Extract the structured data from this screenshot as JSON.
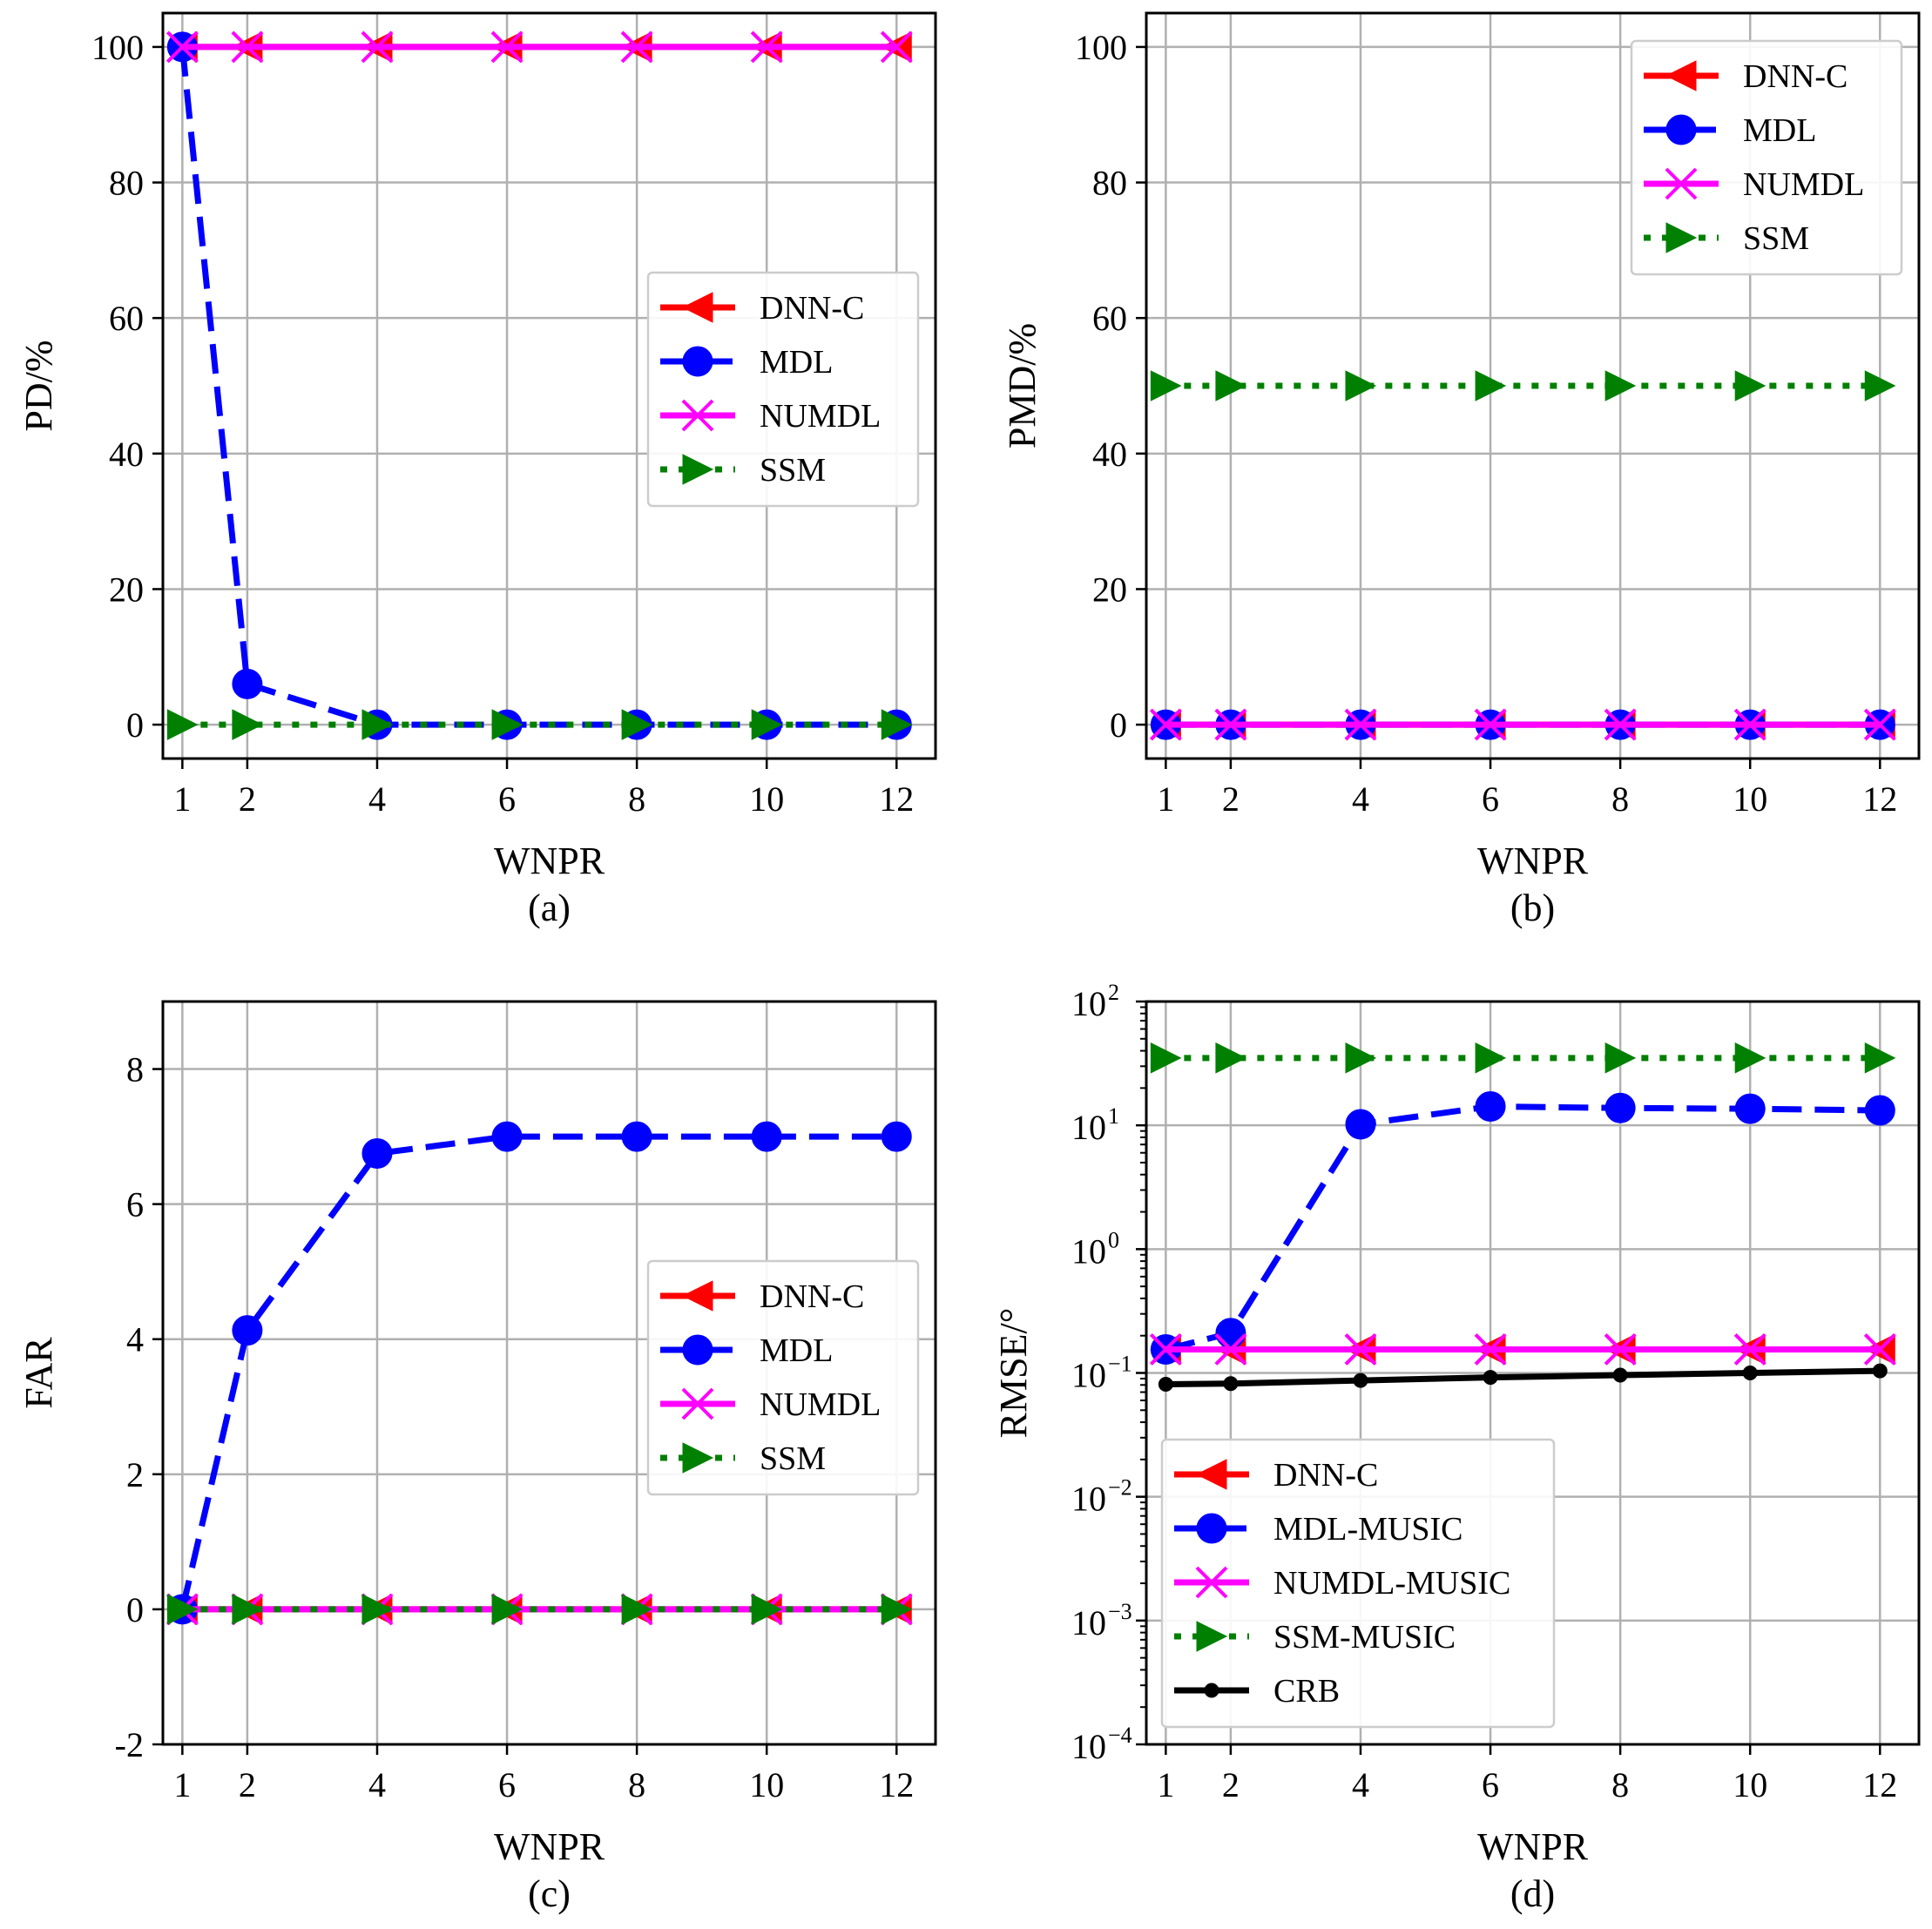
{
  "figure": {
    "colors": {
      "DNN-C": "#ff0000",
      "MDL": "#0000ff",
      "NUMDL": "#ff00ff",
      "SSM": "#008000",
      "CRB": "#000000",
      "grid": "#b0b0b0",
      "legend_border": "#cccccc"
    }
  },
  "chart_data": [
    {
      "id": "a",
      "type": "line",
      "caption": "(a)",
      "xlabel": "WNPR",
      "ylabel": "PD/%",
      "yscale": "linear",
      "xlim": [
        0.7,
        12.6
      ],
      "ylim": [
        -5,
        105
      ],
      "xticks": [
        1,
        2,
        4,
        6,
        8,
        10,
        12
      ],
      "xtick_labels": [
        "1",
        "2",
        "4",
        "6",
        "8",
        "10",
        "12"
      ],
      "yticks": [
        0,
        20,
        40,
        60,
        80,
        100
      ],
      "ytick_labels": [
        "0",
        "20",
        "40",
        "60",
        "80",
        "100"
      ],
      "legend_position": "center-right",
      "x": [
        1,
        2,
        4,
        6,
        8,
        10,
        12
      ],
      "series": [
        {
          "name": "DNN-C",
          "values": [
            100,
            100,
            100,
            100,
            100,
            100,
            100
          ],
          "marker": "triangle-left",
          "style": "solid"
        },
        {
          "name": "MDL",
          "values": [
            100,
            6,
            0,
            0,
            0,
            0,
            0
          ],
          "marker": "circle",
          "style": "dashed"
        },
        {
          "name": "NUMDL",
          "values": [
            100,
            100,
            100,
            100,
            100,
            100,
            100
          ],
          "marker": "x",
          "style": "solid"
        },
        {
          "name": "SSM",
          "values": [
            0,
            0,
            0,
            0,
            0,
            0,
            0
          ],
          "marker": "triangle-right",
          "style": "dotted"
        }
      ]
    },
    {
      "id": "b",
      "type": "line",
      "caption": "(b)",
      "xlabel": "WNPR",
      "ylabel": "PMD/%",
      "yscale": "linear",
      "xlim": [
        0.7,
        12.6
      ],
      "ylim": [
        -5,
        105
      ],
      "xticks": [
        1,
        2,
        4,
        6,
        8,
        10,
        12
      ],
      "xtick_labels": [
        "1",
        "2",
        "4",
        "6",
        "8",
        "10",
        "12"
      ],
      "yticks": [
        0,
        20,
        40,
        60,
        80,
        100
      ],
      "ytick_labels": [
        "0",
        "20",
        "40",
        "60",
        "80",
        "100"
      ],
      "legend_position": "top-right",
      "x": [
        1,
        2,
        4,
        6,
        8,
        10,
        12
      ],
      "series": [
        {
          "name": "DNN-C",
          "values": [
            0,
            0,
            0,
            0,
            0,
            0,
            0
          ],
          "marker": "triangle-left",
          "style": "solid"
        },
        {
          "name": "MDL",
          "values": [
            0,
            0,
            0,
            0,
            0,
            0,
            0
          ],
          "marker": "circle",
          "style": "dashed"
        },
        {
          "name": "NUMDL",
          "values": [
            0,
            0,
            0,
            0,
            0,
            0,
            0
          ],
          "marker": "x",
          "style": "solid"
        },
        {
          "name": "SSM",
          "values": [
            50,
            50,
            50,
            50,
            50,
            50,
            50
          ],
          "marker": "triangle-right",
          "style": "dotted"
        }
      ]
    },
    {
      "id": "c",
      "type": "line",
      "caption": "(c)",
      "xlabel": "WNPR",
      "ylabel": "FAR",
      "yscale": "linear",
      "xlim": [
        0.7,
        12.6
      ],
      "ylim": [
        -2,
        9
      ],
      "xticks": [
        1,
        2,
        4,
        6,
        8,
        10,
        12
      ],
      "xtick_labels": [
        "1",
        "2",
        "4",
        "6",
        "8",
        "10",
        "12"
      ],
      "yticks": [
        -2,
        0,
        2,
        4,
        6,
        8
      ],
      "ytick_labels": [
        "-2",
        "0",
        "2",
        "4",
        "6",
        "8"
      ],
      "legend_position": "center-right",
      "x": [
        1,
        2,
        4,
        6,
        8,
        10,
        12
      ],
      "series": [
        {
          "name": "DNN-C",
          "values": [
            0,
            0,
            0,
            0,
            0,
            0,
            0
          ],
          "marker": "triangle-left",
          "style": "solid"
        },
        {
          "name": "MDL",
          "values": [
            0,
            4.13,
            6.75,
            7.0,
            7.0,
            7.0,
            7.0
          ],
          "marker": "circle",
          "style": "dashed"
        },
        {
          "name": "NUMDL",
          "values": [
            0,
            0,
            0,
            0,
            0,
            0,
            0
          ],
          "marker": "x",
          "style": "solid"
        },
        {
          "name": "SSM",
          "values": [
            0,
            0,
            0,
            0,
            0,
            0,
            0
          ],
          "marker": "triangle-right",
          "style": "dotted"
        }
      ]
    },
    {
      "id": "d",
      "type": "line",
      "caption": "(d)",
      "xlabel": "WNPR",
      "ylabel": "RMSE/°",
      "yscale": "log",
      "xlim": [
        0.7,
        12.6
      ],
      "ylim": [
        0.0001,
        100
      ],
      "xticks": [
        1,
        2,
        4,
        6,
        8,
        10,
        12
      ],
      "xtick_labels": [
        "1",
        "2",
        "4",
        "6",
        "8",
        "10",
        "12"
      ],
      "yticks": [
        0.0001,
        0.001,
        0.01,
        0.1,
        1,
        10,
        100
      ],
      "ytick_exponents": [
        "−4",
        "−3",
        "−2",
        "−1",
        "0",
        "1",
        "2"
      ],
      "ytick_base": "10",
      "legend_position": "lower-left",
      "x": [
        1,
        2,
        4,
        6,
        8,
        10,
        12
      ],
      "series": [
        {
          "name": "DNN-C",
          "values": [
            0.155,
            0.155,
            0.155,
            0.155,
            0.155,
            0.155,
            0.155
          ],
          "marker": "triangle-left",
          "style": "solid"
        },
        {
          "name": "MDL-MUSIC",
          "values": [
            0.155,
            0.21,
            10.2,
            14.2,
            13.8,
            13.6,
            13.2
          ],
          "marker": "circle",
          "style": "dashed"
        },
        {
          "name": "NUMDL-MUSIC",
          "values": [
            0.155,
            0.155,
            0.155,
            0.155,
            0.155,
            0.155,
            0.155
          ],
          "marker": "x",
          "style": "solid"
        },
        {
          "name": "SSM-MUSIC",
          "values": [
            35,
            35,
            35,
            35,
            35,
            35,
            35
          ],
          "marker": "triangle-right",
          "style": "dotted"
        },
        {
          "name": "CRB",
          "values": [
            0.081,
            0.082,
            0.087,
            0.092,
            0.096,
            0.1,
            0.104
          ],
          "marker": "small-circle",
          "style": "solid"
        }
      ]
    }
  ]
}
